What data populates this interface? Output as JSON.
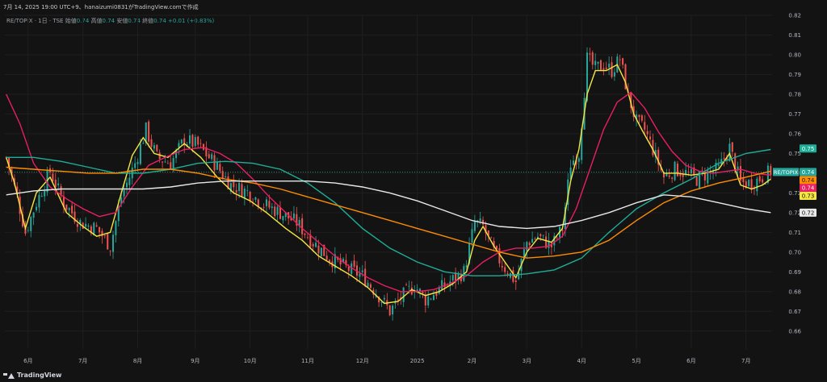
{
  "header": {
    "timestamp_line": "7月 14, 2025 19:00 UTC+9、hanaizumi0831がTradingView.comで作成"
  },
  "legend": {
    "symbol": "RE/TOPIX · 1日 · TSE",
    "open_label": "始値",
    "open": "0.74",
    "high_label": "高値",
    "high": "0.74",
    "low_label": "安値",
    "low": "0.74",
    "close_label": "終値",
    "close": "0.74",
    "change": "+0.01 (+0.83%)"
  },
  "footer": {
    "brand": "TradingView"
  },
  "colors": {
    "background": "#131313",
    "grid": "#1f1f1f",
    "up": "#26a69a",
    "down": "#ef5350",
    "ma_yellow": "#f5e642",
    "ma_pink": "#e91e63",
    "ma_teal": "#1eae98",
    "ma_orange": "#ff8c00",
    "ma_white": "#e8e8e8"
  },
  "chart_data": {
    "type": "candlestick",
    "title": "",
    "xlabel": "",
    "ylabel": "",
    "ylim": [
      0.655,
      0.82
    ],
    "y_ticks": [
      "0.66",
      "0.67",
      "0.68",
      "0.69",
      "0.70",
      "0.71",
      "0.72",
      "0.73",
      "0.74",
      "0.75",
      "0.76",
      "0.77",
      "0.78",
      "0.79",
      "0.80",
      "0.81",
      "0.82"
    ],
    "x_ticks": [
      "6月",
      "7月",
      "8月",
      "9月",
      "10月",
      "11月",
      "12月",
      "2025",
      "2月",
      "3月",
      "4月",
      "5月",
      "6月",
      "7月"
    ],
    "x_tick_index": [
      8,
      28,
      48,
      69,
      89,
      110,
      130,
      150,
      170,
      190,
      210,
      230,
      250,
      270
    ],
    "n_bars": 280,
    "grid": true,
    "price_labels": [
      {
        "text": "RE/TOPIX",
        "value": "0.74",
        "color": "#26a69a"
      },
      {
        "text": "",
        "value": "0.75",
        "color": "#1eae98"
      },
      {
        "text": "",
        "value": "0.74",
        "color": "#ff8c00"
      },
      {
        "text": "",
        "value": "0.74",
        "color": "#e91e63"
      },
      {
        "text": "",
        "value": "0.73",
        "color": "#f5e642"
      },
      {
        "text": "",
        "value": "0.72",
        "color": "#e8e8e8"
      }
    ],
    "price_label_y": [
      0.7406,
      0.7525,
      0.7365,
      0.7325,
      0.7285,
      0.72
    ],
    "anchors": [
      [
        0,
        0.748
      ],
      [
        4,
        0.728
      ],
      [
        7,
        0.71
      ],
      [
        11,
        0.725
      ],
      [
        16,
        0.741
      ],
      [
        21,
        0.725
      ],
      [
        27,
        0.715
      ],
      [
        33,
        0.712
      ],
      [
        38,
        0.703
      ],
      [
        42,
        0.728
      ],
      [
        47,
        0.745
      ],
      [
        51,
        0.762
      ],
      [
        55,
        0.748
      ],
      [
        60,
        0.745
      ],
      [
        65,
        0.757
      ],
      [
        70,
        0.754
      ],
      [
        76,
        0.745
      ],
      [
        82,
        0.734
      ],
      [
        89,
        0.73
      ],
      [
        93,
        0.725
      ],
      [
        100,
        0.72
      ],
      [
        106,
        0.715
      ],
      [
        112,
        0.705
      ],
      [
        118,
        0.697
      ],
      [
        124,
        0.692
      ],
      [
        130,
        0.688
      ],
      [
        136,
        0.678
      ],
      [
        140,
        0.67
      ],
      [
        144,
        0.677
      ],
      [
        149,
        0.683
      ],
      [
        153,
        0.676
      ],
      [
        158,
        0.681
      ],
      [
        162,
        0.685
      ],
      [
        167,
        0.69
      ],
      [
        171,
        0.715
      ],
      [
        174,
        0.713
      ],
      [
        178,
        0.7
      ],
      [
        182,
        0.692
      ],
      [
        186,
        0.685
      ],
      [
        190,
        0.705
      ],
      [
        194,
        0.708
      ],
      [
        199,
        0.703
      ],
      [
        203,
        0.712
      ],
      [
        206,
        0.745
      ],
      [
        209,
        0.75
      ],
      [
        212,
        0.798
      ],
      [
        215,
        0.793
      ],
      [
        218,
        0.795
      ],
      [
        221,
        0.792
      ],
      [
        224,
        0.798
      ],
      [
        227,
        0.779
      ],
      [
        230,
        0.766
      ],
      [
        233,
        0.762
      ],
      [
        236,
        0.752
      ],
      [
        240,
        0.738
      ],
      [
        244,
        0.742
      ],
      [
        248,
        0.74
      ],
      [
        252,
        0.737
      ],
      [
        256,
        0.74
      ],
      [
        260,
        0.742
      ],
      [
        264,
        0.753
      ],
      [
        268,
        0.735
      ],
      [
        272,
        0.735
      ],
      [
        276,
        0.738
      ],
      [
        279,
        0.741
      ]
    ],
    "series": [
      {
        "name": "",
        "color": "#f5e642",
        "points": [
          [
            0,
            0.748
          ],
          [
            3,
            0.735
          ],
          [
            7,
            0.712
          ],
          [
            11,
            0.73
          ],
          [
            16,
            0.738
          ],
          [
            22,
            0.72
          ],
          [
            28,
            0.713
          ],
          [
            33,
            0.708
          ],
          [
            38,
            0.71
          ],
          [
            42,
            0.73
          ],
          [
            46,
            0.749
          ],
          [
            50,
            0.758
          ],
          [
            54,
            0.75
          ],
          [
            59,
            0.748
          ],
          [
            65,
            0.755
          ],
          [
            71,
            0.748
          ],
          [
            77,
            0.738
          ],
          [
            83,
            0.73
          ],
          [
            89,
            0.726
          ],
          [
            95,
            0.72
          ],
          [
            102,
            0.712
          ],
          [
            108,
            0.706
          ],
          [
            114,
            0.698
          ],
          [
            120,
            0.693
          ],
          [
            126,
            0.688
          ],
          [
            132,
            0.682
          ],
          [
            138,
            0.674
          ],
          [
            143,
            0.675
          ],
          [
            148,
            0.681
          ],
          [
            153,
            0.678
          ],
          [
            158,
            0.68
          ],
          [
            163,
            0.684
          ],
          [
            168,
            0.69
          ],
          [
            171,
            0.706
          ],
          [
            174,
            0.713
          ],
          [
            178,
            0.703
          ],
          [
            182,
            0.695
          ],
          [
            186,
            0.687
          ],
          [
            190,
            0.7
          ],
          [
            194,
            0.707
          ],
          [
            199,
            0.705
          ],
          [
            203,
            0.712
          ],
          [
            206,
            0.736
          ],
          [
            209,
            0.752
          ],
          [
            212,
            0.78
          ],
          [
            215,
            0.792
          ],
          [
            219,
            0.792
          ],
          [
            223,
            0.795
          ],
          [
            226,
            0.786
          ],
          [
            229,
            0.77
          ],
          [
            232,
            0.762
          ],
          [
            236,
            0.752
          ],
          [
            240,
            0.74
          ],
          [
            245,
            0.74
          ],
          [
            250,
            0.739
          ],
          [
            255,
            0.74
          ],
          [
            260,
            0.742
          ],
          [
            264,
            0.75
          ],
          [
            268,
            0.734
          ],
          [
            272,
            0.732
          ],
          [
            276,
            0.734
          ],
          [
            279,
            0.737
          ]
        ]
      },
      {
        "name": "",
        "color": "#e91e63",
        "points": [
          [
            0,
            0.78
          ],
          [
            5,
            0.765
          ],
          [
            10,
            0.745
          ],
          [
            16,
            0.733
          ],
          [
            22,
            0.727
          ],
          [
            28,
            0.722
          ],
          [
            34,
            0.718
          ],
          [
            40,
            0.72
          ],
          [
            46,
            0.733
          ],
          [
            52,
            0.744
          ],
          [
            58,
            0.748
          ],
          [
            65,
            0.752
          ],
          [
            72,
            0.753
          ],
          [
            78,
            0.75
          ],
          [
            84,
            0.745
          ],
          [
            90,
            0.737
          ],
          [
            96,
            0.728
          ],
          [
            102,
            0.72
          ],
          [
            108,
            0.712
          ],
          [
            114,
            0.705
          ],
          [
            120,
            0.698
          ],
          [
            126,
            0.692
          ],
          [
            132,
            0.687
          ],
          [
            138,
            0.683
          ],
          [
            144,
            0.68
          ],
          [
            150,
            0.68
          ],
          [
            156,
            0.681
          ],
          [
            162,
            0.684
          ],
          [
            168,
            0.688
          ],
          [
            174,
            0.695
          ],
          [
            180,
            0.7
          ],
          [
            186,
            0.702
          ],
          [
            192,
            0.702
          ],
          [
            198,
            0.703
          ],
          [
            203,
            0.708
          ],
          [
            208,
            0.722
          ],
          [
            213,
            0.742
          ],
          [
            218,
            0.762
          ],
          [
            223,
            0.776
          ],
          [
            228,
            0.781
          ],
          [
            233,
            0.773
          ],
          [
            238,
            0.761
          ],
          [
            243,
            0.751
          ],
          [
            248,
            0.744
          ],
          [
            253,
            0.741
          ],
          [
            258,
            0.74
          ],
          [
            263,
            0.741
          ],
          [
            268,
            0.742
          ],
          [
            273,
            0.74
          ],
          [
            279,
            0.739
          ]
        ]
      },
      {
        "name": "",
        "color": "#1eae98",
        "points": [
          [
            0,
            0.748
          ],
          [
            10,
            0.748
          ],
          [
            20,
            0.746
          ],
          [
            30,
            0.743
          ],
          [
            40,
            0.74
          ],
          [
            50,
            0.74
          ],
          [
            60,
            0.742
          ],
          [
            70,
            0.745
          ],
          [
            80,
            0.746
          ],
          [
            90,
            0.745
          ],
          [
            100,
            0.742
          ],
          [
            110,
            0.735
          ],
          [
            120,
            0.725
          ],
          [
            130,
            0.712
          ],
          [
            140,
            0.702
          ],
          [
            150,
            0.695
          ],
          [
            160,
            0.69
          ],
          [
            170,
            0.688
          ],
          [
            180,
            0.688
          ],
          [
            190,
            0.689
          ],
          [
            200,
            0.691
          ],
          [
            210,
            0.697
          ],
          [
            220,
            0.71
          ],
          [
            230,
            0.722
          ],
          [
            240,
            0.73
          ],
          [
            250,
            0.737
          ],
          [
            260,
            0.745
          ],
          [
            270,
            0.75
          ],
          [
            279,
            0.752
          ]
        ]
      },
      {
        "name": "",
        "color": "#ff8c00",
        "points": [
          [
            0,
            0.743
          ],
          [
            10,
            0.742
          ],
          [
            20,
            0.741
          ],
          [
            30,
            0.74
          ],
          [
            40,
            0.74
          ],
          [
            50,
            0.742
          ],
          [
            60,
            0.742
          ],
          [
            70,
            0.74
          ],
          [
            80,
            0.737
          ],
          [
            90,
            0.735
          ],
          [
            100,
            0.732
          ],
          [
            110,
            0.728
          ],
          [
            120,
            0.724
          ],
          [
            130,
            0.72
          ],
          [
            140,
            0.716
          ],
          [
            150,
            0.712
          ],
          [
            160,
            0.708
          ],
          [
            170,
            0.704
          ],
          [
            180,
            0.7
          ],
          [
            190,
            0.697
          ],
          [
            200,
            0.698
          ],
          [
            210,
            0.7
          ],
          [
            220,
            0.706
          ],
          [
            230,
            0.716
          ],
          [
            240,
            0.725
          ],
          [
            250,
            0.731
          ],
          [
            260,
            0.735
          ],
          [
            270,
            0.738
          ],
          [
            279,
            0.741
          ]
        ]
      },
      {
        "name": "",
        "color": "#e8e8e8",
        "points": [
          [
            0,
            0.729
          ],
          [
            10,
            0.731
          ],
          [
            20,
            0.732
          ],
          [
            30,
            0.732
          ],
          [
            40,
            0.732
          ],
          [
            50,
            0.732
          ],
          [
            60,
            0.733
          ],
          [
            70,
            0.735
          ],
          [
            80,
            0.736
          ],
          [
            90,
            0.736
          ],
          [
            100,
            0.736
          ],
          [
            110,
            0.736
          ],
          [
            120,
            0.735
          ],
          [
            130,
            0.733
          ],
          [
            140,
            0.73
          ],
          [
            150,
            0.726
          ],
          [
            160,
            0.721
          ],
          [
            170,
            0.716
          ],
          [
            180,
            0.713
          ],
          [
            190,
            0.712
          ],
          [
            200,
            0.713
          ],
          [
            210,
            0.716
          ],
          [
            220,
            0.72
          ],
          [
            230,
            0.725
          ],
          [
            240,
            0.729
          ],
          [
            250,
            0.728
          ],
          [
            260,
            0.725
          ],
          [
            270,
            0.722
          ],
          [
            279,
            0.72
          ]
        ]
      }
    ]
  }
}
